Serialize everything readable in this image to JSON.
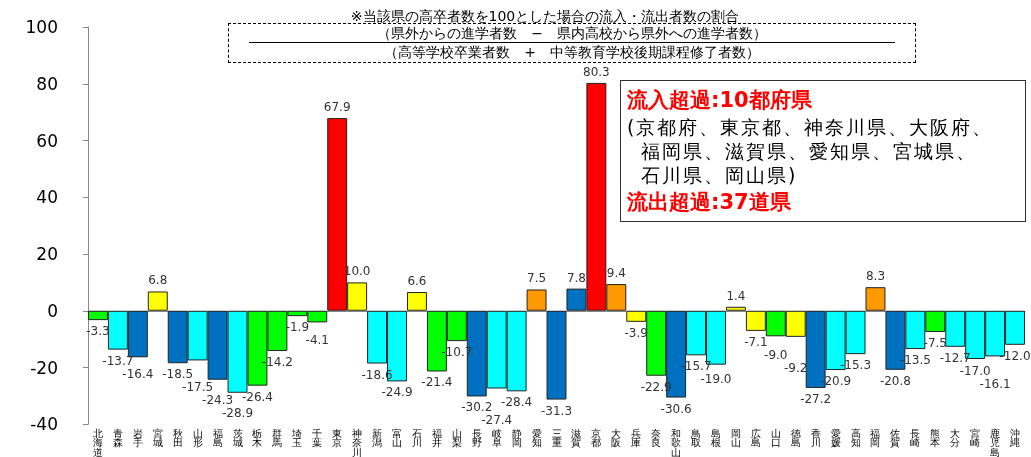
{
  "chart_data": {
    "type": "bar",
    "title": "※当該県の高卒者数を100とした場合の流入・流出者数の割合",
    "annotations": [
      "（県外からの進学者数　−　県内高校から県外への進学者数）",
      "（高等学校卒業者数　+　中等教育学校後期課程修了者数）",
      "流入超過:10都府県",
      "(京都府、東京都、神奈川県、大阪府、福岡県、滋賀県、愛知県、宮城県、石川県、岡山県)",
      "流出超過:37道県"
    ],
    "categories": [
      "北海道",
      "青森",
      "岩手",
      "宮城",
      "秋田",
      "山形",
      "福島",
      "茨城",
      "栃木",
      "群馬",
      "埼玉",
      "千葉",
      "東京",
      "神奈川",
      "新潟",
      "富山",
      "石川",
      "福井",
      "山梨",
      "長野",
      "岐阜",
      "静岡",
      "愛知",
      "三重",
      "滋賀",
      "京都",
      "大阪",
      "兵庫",
      "奈良",
      "和歌山",
      "鳥取",
      "島根",
      "岡山",
      "広島",
      "山口",
      "徳島",
      "香川",
      "愛媛",
      "高知",
      "福岡",
      "佐賀",
      "長崎",
      "熊本",
      "大分",
      "宮崎",
      "鹿児島",
      "沖縄"
    ],
    "values": [
      -3.3,
      -13.7,
      -16.4,
      6.8,
      -18.5,
      -17.5,
      -24.3,
      -28.9,
      -26.4,
      -14.2,
      -1.9,
      -4.1,
      67.9,
      10.0,
      -18.6,
      -24.9,
      6.6,
      -21.4,
      -10.7,
      -30.2,
      -27.4,
      -28.4,
      7.5,
      -31.3,
      7.8,
      80.3,
      9.4,
      -3.9,
      -22.9,
      -30.6,
      -15.7,
      -19.0,
      1.4,
      -7.1,
      -9.0,
      -9.2,
      -27.2,
      -20.9,
      -15.3,
      8.3,
      -20.8,
      -13.5,
      -7.5,
      -12.7,
      -17.0,
      -16.1,
      -12.0
    ],
    "value_labels": [
      "-3.3",
      "-13.7",
      "-16.4",
      "6.8",
      "-18.5",
      "-17.5",
      "-24.3",
      "-28.9",
      "-26.4",
      "-14.2",
      "-1.9",
      "-4.1",
      "67.9",
      "10.0",
      "-18.6",
      "-24.9",
      "6.6",
      "-21.4",
      "-10.7",
      "-30.2",
      "-27.4",
      "-28.4",
      "7.5",
      "-31.3",
      "7.8",
      "80.3",
      "9.4",
      "-3.9",
      "-22.9",
      "-30.6",
      "-15.7",
      "-19.0",
      "1.4",
      "-7.1",
      "-9.0",
      "-9.2",
      "-27.2",
      "-20.9",
      "-15.3",
      "8.3",
      "-20.8",
      "-13.5",
      "-7.5",
      "-12.7",
      "-17.0",
      "-16.1",
      "-12.0"
    ],
    "colors": [
      "#00ff00",
      "#00ffff",
      "#0070c0",
      "#ffff00",
      "#0070c0",
      "#00ffff",
      "#0070c0",
      "#00ffff",
      "#00ff00",
      "#00ff00",
      "#00ff00",
      "#00ff00",
      "#ff0000",
      "#ffff00",
      "#00ffff",
      "#00ffff",
      "#ffff00",
      "#00ff00",
      "#00ff00",
      "#0070c0",
      "#00ffff",
      "#00ffff",
      "#ff9900",
      "#0070c0",
      "#0070c0",
      "#ff0000",
      "#ff9900",
      "#ffff00",
      "#00ff00",
      "#0070c0",
      "#00ffff",
      "#00ffff",
      "#ffff00",
      "#ffff00",
      "#00ff00",
      "#ffff00",
      "#0070c0",
      "#00ffff",
      "#00ffff",
      "#ff9900",
      "#0070c0",
      "#00ffff",
      "#00ff00",
      "#00ffff",
      "#00ffff",
      "#00ffff",
      "#00ffff"
    ],
    "ylim": [
      -40,
      100
    ],
    "yticks": [
      -40,
      -20,
      0,
      20,
      40,
      60,
      80,
      100
    ]
  }
}
